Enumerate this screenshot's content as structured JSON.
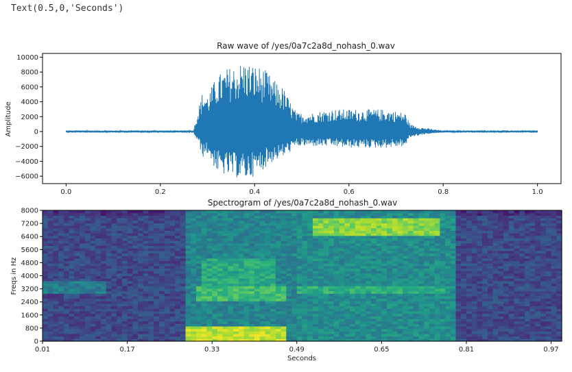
{
  "notebook": {
    "output_text": "Text(0.5,0,'Seconds')"
  },
  "colors": {
    "wave": "#1f77b4",
    "axis": "#000000",
    "viridis": [
      "#440154",
      "#472d7b",
      "#3b528b",
      "#2c728e",
      "#21918c",
      "#28ae80",
      "#5ec962",
      "#addc30",
      "#fde725"
    ]
  },
  "chart_data": [
    {
      "type": "line",
      "title": "Raw wave of /yes/0a7c2a8d_nohash_0.wav",
      "xlabel": "",
      "ylabel": "Amplitude",
      "xlim": [
        -0.05,
        1.05
      ],
      "ylim": [
        -7000,
        10500
      ],
      "xticks": [
        0.0,
        0.2,
        0.4,
        0.6,
        0.8,
        1.0
      ],
      "xtick_labels": [
        "0.0",
        "0.2",
        "0.4",
        "0.6",
        "0.8",
        "1.0"
      ],
      "yticks": [
        -6000,
        -4000,
        -2000,
        0,
        2000,
        4000,
        6000,
        8000,
        10000
      ],
      "ytick_labels": [
        "−6000",
        "−4000",
        "−2000",
        "0",
        "2000",
        "4000",
        "6000",
        "8000",
        "10000"
      ],
      "series": [
        {
          "x_range": [
            0.0,
            1.0
          ],
          "envelope_x": [
            0.0,
            0.27,
            0.28,
            0.29,
            0.3,
            0.32,
            0.34,
            0.36,
            0.38,
            0.4,
            0.42,
            0.44,
            0.46,
            0.48,
            0.49,
            0.52,
            0.56,
            0.6,
            0.64,
            0.68,
            0.72,
            0.73,
            0.75,
            0.78,
            0.8,
            1.0
          ],
          "envelope_pos": [
            150,
            150,
            3000,
            5500,
            5000,
            7500,
            8500,
            9000,
            9500,
            9000,
            8500,
            7000,
            6000,
            3500,
            2500,
            2500,
            3000,
            3000,
            3000,
            3000,
            2500,
            1000,
            600,
            300,
            150,
            150
          ],
          "envelope_neg": [
            -150,
            -150,
            -1500,
            -3500,
            -3000,
            -5500,
            -6000,
            -6200,
            -6500,
            -6000,
            -5000,
            -4000,
            -3500,
            -2500,
            -2000,
            -2000,
            -2000,
            -2200,
            -2200,
            -2200,
            -2000,
            -800,
            -500,
            -250,
            -150,
            -150
          ]
        }
      ]
    },
    {
      "type": "heatmap",
      "title": "Spectrogram of /yes/0a7c2a8d_nohash_0.wav",
      "xlabel": "Seconds",
      "ylabel": "Freqs in Hz",
      "xlim": [
        0.01,
        0.99
      ],
      "ylim": [
        0,
        8000
      ],
      "xticks": [
        0.01,
        0.17,
        0.33,
        0.49,
        0.65,
        0.81,
        0.97
      ],
      "xtick_labels": [
        "0.01",
        "0.17",
        "0.33",
        "0.49",
        "0.65",
        "0.81",
        "0.97"
      ],
      "yticks": [
        0,
        800,
        1600,
        2400,
        3200,
        4000,
        4800,
        5600,
        6400,
        7200,
        8000
      ],
      "ytick_labels": [
        "0",
        "800",
        "1600",
        "2400",
        "3200",
        "4000",
        "4800",
        "5600",
        "6400",
        "7200",
        "8000"
      ],
      "colormap": "viridis",
      "intensity_regions": [
        {
          "t": [
            0.01,
            0.28
          ],
          "f": [
            0,
            8000
          ],
          "level": 0.22
        },
        {
          "t": [
            0.01,
            0.13
          ],
          "f": [
            2900,
            3700
          ],
          "level": 0.42
        },
        {
          "t": [
            0.28,
            0.49
          ],
          "f": [
            0,
            8000
          ],
          "level": 0.45
        },
        {
          "t": [
            0.31,
            0.45
          ],
          "f": [
            3200,
            5000
          ],
          "level": 0.6
        },
        {
          "t": [
            0.3,
            0.47
          ],
          "f": [
            2400,
            3400
          ],
          "level": 0.68
        },
        {
          "t": [
            0.28,
            0.47
          ],
          "f": [
            0,
            900
          ],
          "level": 0.9
        },
        {
          "t": [
            0.49,
            0.79
          ],
          "f": [
            0,
            8000
          ],
          "level": 0.48
        },
        {
          "t": [
            0.52,
            0.76
          ],
          "f": [
            6400,
            7600
          ],
          "level": 0.82
        },
        {
          "t": [
            0.49,
            0.77
          ],
          "f": [
            2900,
            3400
          ],
          "level": 0.62
        },
        {
          "t": [
            0.79,
            0.99
          ],
          "f": [
            0,
            8000
          ],
          "level": 0.22
        }
      ]
    }
  ]
}
